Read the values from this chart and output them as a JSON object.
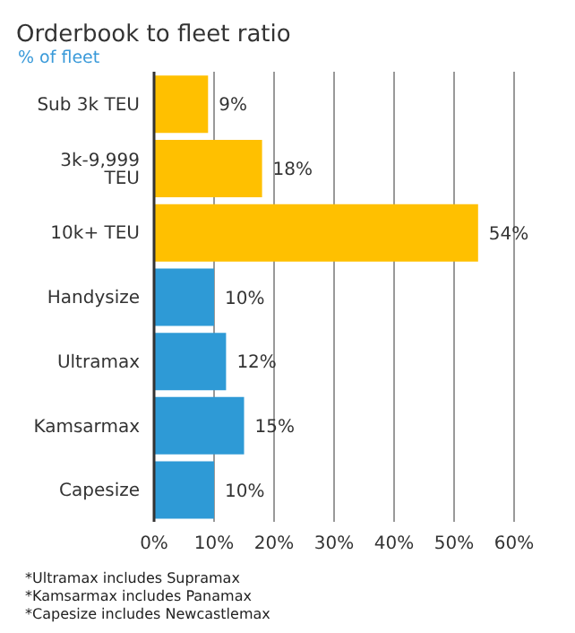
{
  "chart_data": {
    "type": "bar",
    "orientation": "horizontal",
    "title": "Orderbook to fleet ratio",
    "subtitle": "% of fleet",
    "categories": [
      "Sub 3k TEU",
      "3k-9,999 TEU",
      "10k+ TEU",
      "Handysize",
      "Ultramax",
      "Kamsarmax",
      "Capesize"
    ],
    "values": [
      9,
      18,
      54,
      10,
      12,
      15,
      10
    ],
    "colors": [
      "#ffc000",
      "#ffc000",
      "#ffc000",
      "#2e9ad6",
      "#2e9ad6",
      "#2e9ad6",
      "#2e9ad6"
    ],
    "value_labels": [
      "9%",
      "18%",
      "54%",
      "10%",
      "12%",
      "15%",
      "10%"
    ],
    "xlim": [
      0,
      60
    ],
    "xticks": [
      {
        "value": 0,
        "label": "0%"
      },
      {
        "value": 10,
        "label": "10%"
      },
      {
        "value": 20,
        "label": "20%"
      },
      {
        "value": 30,
        "label": "30%"
      },
      {
        "value": 40,
        "label": "40%"
      },
      {
        "value": 50,
        "label": "50%"
      },
      {
        "value": 60,
        "label": "60%"
      }
    ],
    "grid": "x",
    "annotations": [
      "*Ultramax includes Supramax",
      "*Kamsarmax includes Panamax",
      "*Capesize includes Newcastlemax"
    ]
  }
}
